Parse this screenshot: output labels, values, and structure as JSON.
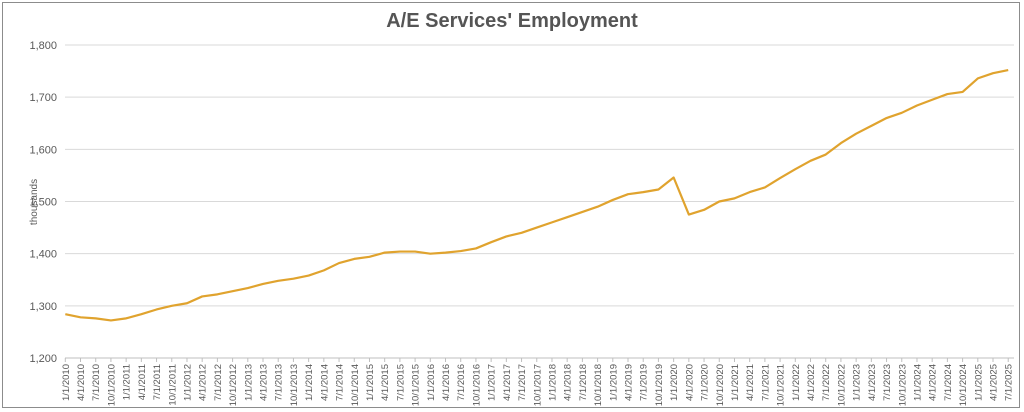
{
  "chart_data": {
    "type": "line",
    "title": "A/E Services' Employment",
    "ylabel": "thousands",
    "ylim": [
      1200,
      1800
    ],
    "yticks": [
      1200,
      1300,
      1400,
      1500,
      1600,
      1700,
      1800
    ],
    "ytick_labels": [
      "1,200",
      "1,300",
      "1,400",
      "1,500",
      "1,600",
      "1,700",
      "1,800"
    ],
    "grid": "horizontal",
    "colors": {
      "line": "#e0a32e",
      "grid": "#d9d9d9",
      "axis": "#bfbfbf"
    },
    "x": [
      "1/1/2010",
      "4/1/2010",
      "7/1/2010",
      "10/1/2010",
      "1/1/2011",
      "4/1/2011",
      "7/1/2011",
      "10/1/2011",
      "1/1/2012",
      "4/1/2012",
      "7/1/2012",
      "10/1/2012",
      "1/1/2013",
      "4/1/2013",
      "7/1/2013",
      "10/1/2013",
      "1/1/2014",
      "4/1/2014",
      "7/1/2014",
      "10/1/2014",
      "1/1/2015",
      "4/1/2015",
      "7/1/2015",
      "10/1/2015",
      "1/1/2016",
      "4/1/2016",
      "7/1/2016",
      "10/1/2016",
      "1/1/2017",
      "4/1/2017",
      "7/1/2017",
      "10/1/2017",
      "1/1/2018",
      "4/1/2018",
      "7/1/2018",
      "10/1/2018",
      "1/1/2019",
      "4/1/2019",
      "7/1/2019",
      "10/1/2019",
      "1/1/2020",
      "4/1/2020",
      "7/1/2020",
      "10/1/2020",
      "1/1/2021",
      "4/1/2021",
      "7/1/2021",
      "10/1/2021",
      "1/1/2022",
      "4/1/2022",
      "7/1/2022",
      "10/1/2022",
      "1/1/2023",
      "4/1/2023",
      "7/1/2023",
      "10/1/2023",
      "1/1/2024",
      "4/1/2024",
      "7/1/2024",
      "10/1/2024",
      "1/1/2025",
      "4/1/2025",
      "7/1/2025"
    ],
    "series": [
      {
        "values": [
          1284,
          1278,
          1276,
          1272,
          1276,
          1284,
          1293,
          1300,
          1305,
          1318,
          1322,
          1328,
          1334,
          1342,
          1348,
          1352,
          1358,
          1368,
          1382,
          1390,
          1394,
          1402,
          1404,
          1404,
          1400,
          1402,
          1405,
          1410,
          1422,
          1433,
          1440,
          1450,
          1460,
          1470,
          1480,
          1490,
          1503,
          1514,
          1518,
          1523,
          1546,
          1475,
          1484,
          1500,
          1506,
          1518,
          1527,
          1545,
          1562,
          1578,
          1590,
          1612,
          1630,
          1645,
          1660,
          1670,
          1684,
          1695,
          1706,
          1710,
          1736,
          1746,
          1752
        ]
      }
    ]
  }
}
